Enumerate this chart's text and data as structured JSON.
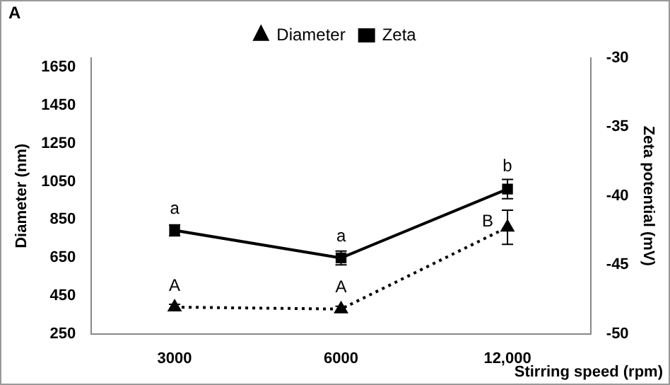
{
  "chart_data": {
    "type": "line",
    "xlabel": "Stirring speed (rpm)",
    "ylabel": "Diameter (nm)",
    "y2label": "Zeta potential (mV)",
    "categories": [
      "3000",
      "6000",
      "12,000"
    ],
    "series": [
      {
        "name": "Diameter",
        "color": "#000000",
        "values": [
          390,
          380,
          810
        ],
        "errors": [
          15,
          15,
          90
        ],
        "marker": "triangle",
        "line_style": "dotted"
      },
      {
        "name": "Zeta",
        "color": "#000000",
        "values": [
          -42.5,
          -44.5,
          -39.5
        ],
        "errors": [
          0.4,
          0.5,
          0.7
        ],
        "axis": "y2",
        "marker": "square",
        "line_style": "solid"
      }
    ],
    "ylim": [
      250,
      1700
    ],
    "yticks": [
      250,
      450,
      650,
      850,
      1050,
      1250,
      1450,
      1650
    ],
    "y2lim": [
      -50,
      -30
    ],
    "y2ticks": [
      -50,
      -45,
      -40,
      -35,
      -30
    ],
    "legend": "top",
    "grid": false,
    "annotations": [
      "A",
      {
        "text": "a",
        "x": "3000",
        "y": 794
      },
      {
        "text": "a",
        "x": "6000",
        "y": 649
      },
      {
        "text": "b",
        "x": "12,000",
        "y": 1011
      },
      {
        "text": "A",
        "x": "3000",
        "y": 390
      },
      {
        "text": "A",
        "x": "6000",
        "y": 380
      },
      {
        "text": "B",
        "x": "12,000",
        "y": 810
      }
    ]
  }
}
